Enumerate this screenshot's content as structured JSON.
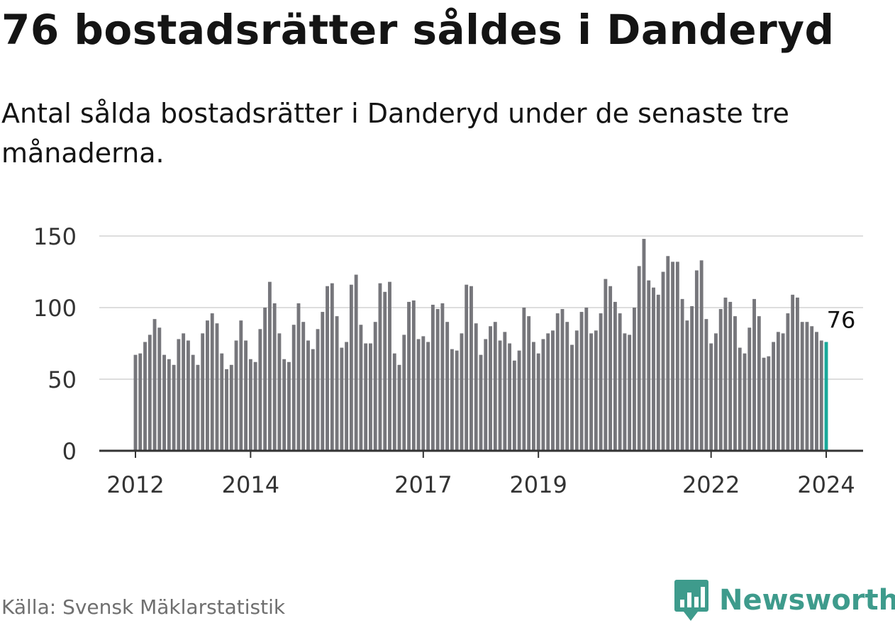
{
  "title": "76 bostadsrätter såldes i Danderyd",
  "subtitle": "Antal sålda bostadsrätter i Danderyd under de senaste tre månaderna.",
  "source": "Källa: Svensk Mäklarstatistik",
  "brand": "Newsworthy",
  "colors": {
    "bar": "#76767b",
    "highlight": "#1aa89a",
    "grid": "#dddddd",
    "axis": "#333333",
    "brand": "#3e9b8c"
  },
  "chart_data": {
    "type": "bar",
    "title": "76 bostadsrätter såldes i Danderyd",
    "xlabel": "",
    "ylabel": "",
    "ylim": [
      0,
      150
    ],
    "yticks": [
      0,
      50,
      100,
      150
    ],
    "xticks": [
      "2012",
      "2014",
      "2017",
      "2019",
      "2022",
      "2024"
    ],
    "xtick_index": [
      0,
      24,
      60,
      84,
      120,
      144
    ],
    "highlight_label": "76",
    "start": "2012-01",
    "end": "2024-01",
    "values": [
      67,
      68,
      76,
      81,
      92,
      86,
      67,
      64,
      60,
      78,
      82,
      77,
      67,
      60,
      82,
      91,
      96,
      89,
      68,
      57,
      60,
      77,
      91,
      77,
      64,
      62,
      85,
      100,
      118,
      103,
      82,
      64,
      62,
      88,
      103,
      90,
      77,
      71,
      85,
      97,
      115,
      117,
      94,
      72,
      76,
      116,
      123,
      88,
      75,
      75,
      90,
      117,
      111,
      118,
      68,
      60,
      81,
      104,
      105,
      78,
      80,
      76,
      102,
      99,
      103,
      90,
      71,
      70,
      82,
      116,
      115,
      89,
      67,
      78,
      87,
      90,
      77,
      83,
      75,
      63,
      70,
      100,
      94,
      76,
      68,
      78,
      82,
      84,
      96,
      99,
      90,
      74,
      84,
      97,
      100,
      82,
      84,
      96,
      120,
      115,
      104,
      96,
      82,
      81,
      100,
      129,
      148,
      119,
      114,
      109,
      125,
      136,
      132,
      132,
      106,
      91,
      101,
      126,
      133,
      92,
      75,
      82,
      99,
      107,
      104,
      94,
      72,
      68,
      86,
      106,
      94,
      65,
      66,
      76,
      83,
      82,
      96,
      109,
      107,
      90,
      90,
      87,
      83,
      77,
      76
    ]
  }
}
